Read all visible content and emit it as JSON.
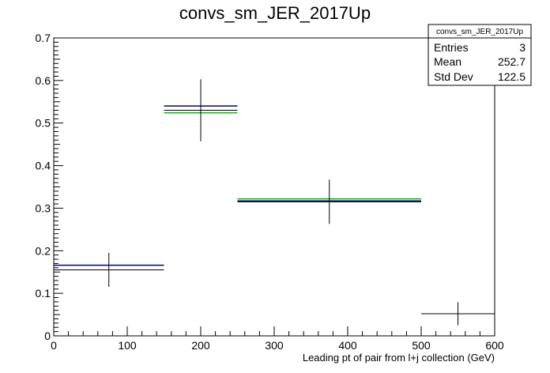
{
  "chart_data": {
    "type": "histogram",
    "title": "convs_sm_JER_2017Up",
    "xlabel": "Leading pt of pair from l+j collection (GeV)",
    "ylabel": "",
    "xlim": [
      0,
      600
    ],
    "ylim": [
      0,
      0.7
    ],
    "x_ticks": [
      "0",
      "100",
      "200",
      "300",
      "400",
      "500",
      "600"
    ],
    "y_ticks": [
      "0",
      "0.1",
      "0.2",
      "0.3",
      "0.4",
      "0.5",
      "0.6",
      "0.7"
    ],
    "bins": [
      [
        0,
        150
      ],
      [
        150,
        250
      ],
      [
        250,
        500
      ],
      [
        500,
        600
      ]
    ],
    "series": [
      {
        "color": "#000000",
        "style": "points-with-errors",
        "values": [
          0.155,
          0.53,
          0.315,
          0.052
        ],
        "errors": [
          0.04,
          0.073,
          0.052,
          0.027
        ]
      },
      {
        "color": "#00008b",
        "style": "hist",
        "values": [
          0.166,
          0.54,
          0.317,
          null
        ]
      },
      {
        "color": "#00c000",
        "style": "hist",
        "values": [
          null,
          0.524,
          0.322,
          null
        ]
      }
    ],
    "stats_box": {
      "title": "convs_sm_JER_2017Up",
      "rows": [
        {
          "label": "Entries",
          "value": "3"
        },
        {
          "label": "Mean",
          "value": "252.7"
        },
        {
          "label": "Std Dev",
          "value": "122.5"
        }
      ]
    }
  }
}
